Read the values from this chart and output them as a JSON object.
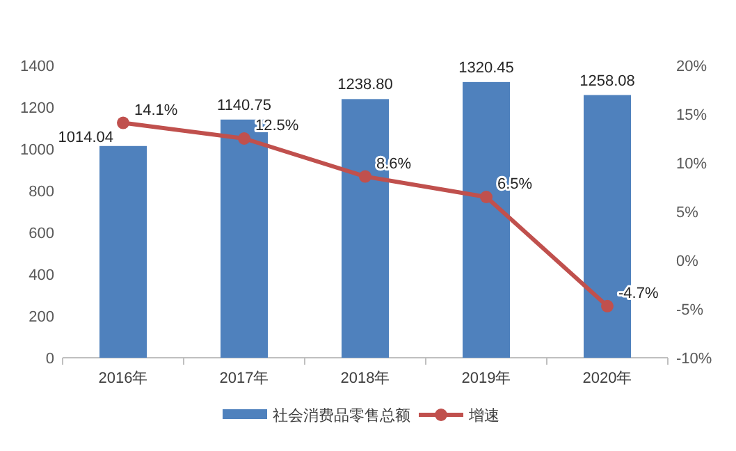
{
  "chart_data": {
    "type": "bar",
    "categories": [
      "2016年",
      "2017年",
      "2018年",
      "2019年",
      "2020年"
    ],
    "series": [
      {
        "name": "社会消费品零售总额",
        "color": "#4f81bd",
        "values": [
          1014.04,
          1140.75,
          1238.8,
          1320.45,
          1258.08
        ],
        "value_labels": [
          "1014.04",
          "1140.75",
          "1238.80",
          "1320.45",
          "1258.08"
        ]
      },
      {
        "name": "增速",
        "type": "line",
        "axis": "y2",
        "color": "#c0504d",
        "values": [
          14.1,
          12.5,
          8.6,
          6.5,
          -4.7
        ],
        "value_labels": [
          "14.1%",
          "12.5%",
          "8.6%",
          "6.5%",
          "-4.7%"
        ]
      }
    ],
    "ylim": [
      0,
      1400
    ],
    "yticks": [
      0,
      200,
      400,
      600,
      800,
      1000,
      1200,
      1400
    ],
    "y2lim": [
      -10,
      20
    ],
    "y2ticks": [
      {
        "value": -10,
        "label": "-10%"
      },
      {
        "value": -5,
        "label": "-5%"
      },
      {
        "value": 0,
        "label": "0%"
      },
      {
        "value": 5,
        "label": "5%"
      },
      {
        "value": 10,
        "label": "10%"
      },
      {
        "value": 15,
        "label": "15%"
      },
      {
        "value": 20,
        "label": "20%"
      }
    ],
    "legend": "bottom",
    "grid": false,
    "marker": "circle",
    "line_style": "solid"
  }
}
